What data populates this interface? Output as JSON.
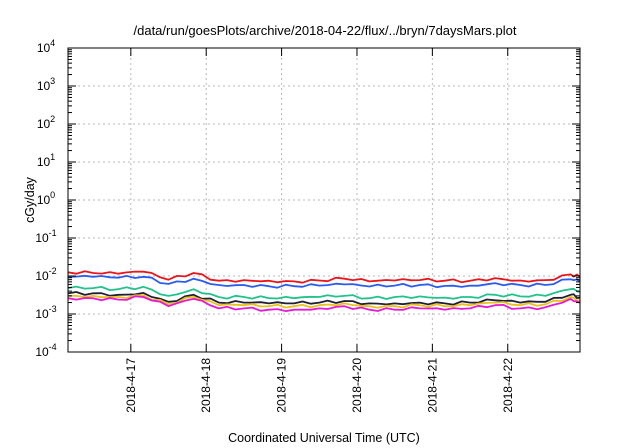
{
  "chart_data": {
    "type": "line",
    "title": "/data/run/goesPlots/archive/2018-04-22/flux/../bryn/7daysMars.plot",
    "xlabel": "Coordinated Universal Time (UTC)",
    "ylabel": "cGy/day",
    "yscale": "log",
    "ylim": [
      0.0001,
      10000
    ],
    "yticks": [
      {
        "base": "10",
        "exp": "-4"
      },
      {
        "base": "10",
        "exp": "-3"
      },
      {
        "base": "10",
        "exp": "-2"
      },
      {
        "base": "10",
        "exp": "-1"
      },
      {
        "base": "10",
        "exp": "0"
      },
      {
        "base": "10",
        "exp": "1"
      },
      {
        "base": "10",
        "exp": "2"
      },
      {
        "base": "10",
        "exp": "3"
      },
      {
        "base": "10",
        "exp": "4"
      }
    ],
    "xlim": [
      "2018-04-16T04:00",
      "2018-04-22T23:00"
    ],
    "xticks": [
      "2018-4-17",
      "2018-4-18",
      "2018-4-19",
      "2018-4-20",
      "2018-4-21",
      "2018-4-22"
    ],
    "grid": true,
    "x": [
      "2018-04-16T04:00",
      "2018-04-16T12:00",
      "2018-04-16T20:00",
      "2018-04-17T04:00",
      "2018-04-17T12:00",
      "2018-04-17T20:00",
      "2018-04-18T04:00",
      "2018-04-18T12:00",
      "2018-04-18T20:00",
      "2018-04-19T04:00",
      "2018-04-19T12:00",
      "2018-04-19T20:00",
      "2018-04-20T04:00",
      "2018-04-20T12:00",
      "2018-04-20T20:00",
      "2018-04-21T04:00",
      "2018-04-21T12:00",
      "2018-04-21T20:00",
      "2018-04-22T04:00",
      "2018-04-22T12:00",
      "2018-04-22T20:00",
      "2018-04-22T23:00"
    ],
    "series": [
      {
        "color": "#e8161b",
        "values": [
          0.0125,
          0.012,
          0.0115,
          0.013,
          0.008,
          0.012,
          0.0075,
          0.0078,
          0.0075,
          0.0072,
          0.0076,
          0.0085,
          0.0072,
          0.0076,
          0.0078,
          0.0075,
          0.0075,
          0.0088,
          0.0076,
          0.0078,
          0.011,
          0.0095
        ]
      },
      {
        "color": "#2a5cf0",
        "values": [
          0.0095,
          0.0095,
          0.009,
          0.0095,
          0.0062,
          0.0085,
          0.0058,
          0.0058,
          0.0054,
          0.0054,
          0.0056,
          0.006,
          0.0053,
          0.0056,
          0.0058,
          0.0055,
          0.0056,
          0.0065,
          0.0058,
          0.0058,
          0.0082,
          0.0072
        ]
      },
      {
        "color": "#22c28c",
        "values": [
          0.0048,
          0.0048,
          0.0045,
          0.0052,
          0.003,
          0.0045,
          0.0028,
          0.0028,
          0.0026,
          0.0026,
          0.0028,
          0.003,
          0.0026,
          0.0028,
          0.0029,
          0.0027,
          0.0028,
          0.0032,
          0.0029,
          0.003,
          0.0045,
          0.0038
        ]
      },
      {
        "color": "#1f1f33",
        "values": [
          0.0035,
          0.0035,
          0.0032,
          0.0036,
          0.0021,
          0.0032,
          0.002,
          0.002,
          0.0019,
          0.0019,
          0.002,
          0.0022,
          0.0019,
          0.0019,
          0.002,
          0.0019,
          0.002,
          0.0023,
          0.002,
          0.0021,
          0.0032,
          0.0027
        ]
      },
      {
        "color": "#e8c21a",
        "values": [
          0.003,
          0.003,
          0.0028,
          0.0031,
          0.0018,
          0.0028,
          0.0017,
          0.0017,
          0.0016,
          0.0016,
          0.0017,
          0.0019,
          0.0016,
          0.0016,
          0.0017,
          0.0016,
          0.0017,
          0.002,
          0.0017,
          0.0018,
          0.0028,
          0.0023
        ]
      },
      {
        "color": "#e61ad6",
        "values": [
          0.0026,
          0.0026,
          0.0024,
          0.0028,
          0.0016,
          0.0025,
          0.0014,
          0.0014,
          0.0013,
          0.0013,
          0.0014,
          0.0016,
          0.0013,
          0.0013,
          0.0014,
          0.0013,
          0.0014,
          0.0017,
          0.0014,
          0.0015,
          0.0025,
          0.002
        ]
      }
    ]
  }
}
